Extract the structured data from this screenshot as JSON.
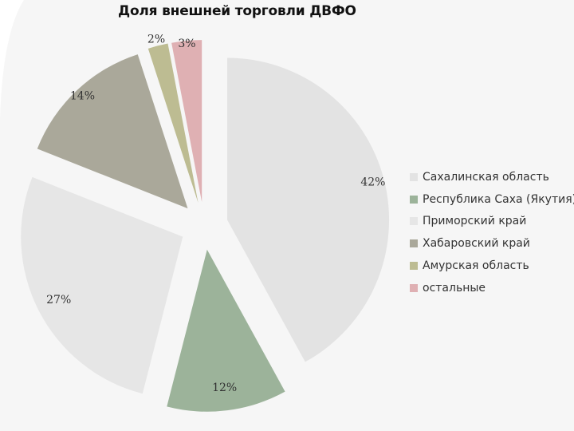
{
  "chart_data": {
    "type": "pie",
    "title": "Доля внешней торговли ДВФО",
    "exploded": true,
    "slices": [
      {
        "name": "Сахалинская область",
        "value": 42,
        "label": "42%",
        "color": "#e3e3e3"
      },
      {
        "name": "Республика Саха (Якутия)",
        "value": 12,
        "label": "12%",
        "color": "#9cb39a"
      },
      {
        "name": "Приморский край",
        "value": 27,
        "label": "27%",
        "color": "#e6e6e6"
      },
      {
        "name": "Хабаровский край",
        "value": 14,
        "label": "14%",
        "color": "#aaa89a"
      },
      {
        "name": "Амурская область",
        "value": 2,
        "label": "2%",
        "color": "#bdbc92"
      },
      {
        "name": "остальные",
        "value": 3,
        "label": "3%",
        "color": "#dfb0b3"
      }
    ],
    "legend_position": "right"
  }
}
